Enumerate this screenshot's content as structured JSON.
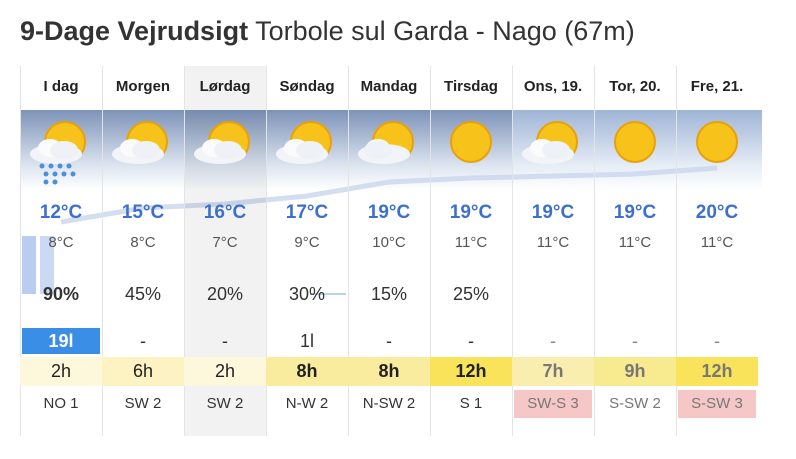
{
  "header": {
    "title": "9-Dage Vejrudsigt",
    "subtitle": "Torbole sul Garda - Nago (67m)"
  },
  "days": [
    {
      "name": "I dag",
      "high": "12°C",
      "low": "8°C",
      "precip_prob": "90%",
      "precip": "19l",
      "sun": "2h",
      "wind": "NO 1"
    },
    {
      "name": "Morgen",
      "high": "15°C",
      "low": "8°C",
      "precip_prob": "45%",
      "precip": "-",
      "sun": "6h",
      "wind": "SW 2"
    },
    {
      "name": "Lørdag",
      "high": "16°C",
      "low": "7°C",
      "precip_prob": "20%",
      "precip": "-",
      "sun": "2h",
      "wind": "SW 2"
    },
    {
      "name": "Søndag",
      "high": "17°C",
      "low": "9°C",
      "precip_prob": "30%",
      "precip": "1l",
      "sun": "8h",
      "wind": "N-W 2"
    },
    {
      "name": "Mandag",
      "high": "19°C",
      "low": "10°C",
      "precip_prob": "15%",
      "precip": "-",
      "sun": "8h",
      "wind": "N-SW 2"
    },
    {
      "name": "Tirsdag",
      "high": "19°C",
      "low": "11°C",
      "precip_prob": "25%",
      "precip": "-",
      "sun": "12h",
      "wind": "S 1"
    },
    {
      "name": "Ons, 19.",
      "high": "19°C",
      "low": "11°C",
      "precip": "-",
      "sun": "7h",
      "wind": "SW-S 3"
    },
    {
      "name": "Tor, 20.",
      "high": "19°C",
      "low": "11°C",
      "precip": "-",
      "sun": "9h",
      "wind": "S-SW 2"
    },
    {
      "name": "Fre, 21.",
      "high": "20°C",
      "low": "11°C",
      "precip": "-",
      "sun": "12h",
      "wind": "S-SW 3"
    }
  ]
}
